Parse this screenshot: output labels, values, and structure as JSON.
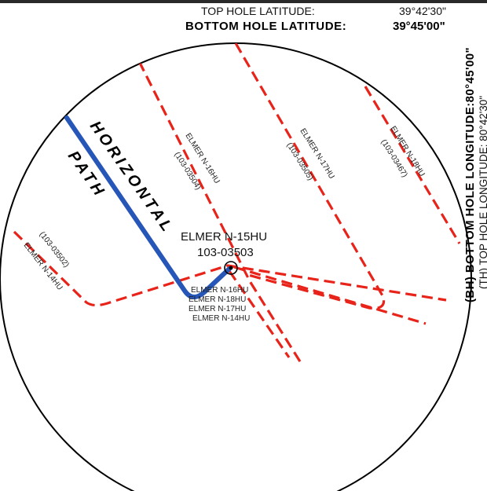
{
  "header": {
    "top_hole_latitude_label": "TOP HOLE LATITUDE:",
    "top_hole_latitude_value": "39°42'30\"",
    "bottom_hole_latitude_label": "BOTTOM HOLE LATITUDE:",
    "bottom_hole_latitude_value": "39°45'00\""
  },
  "side": {
    "bottom_hole_longitude": "(BH) BOTTOM HOLE LONGITUDE:80°45'00\"",
    "top_hole_longitude": "(TH) TOP HOLE LONGITUDE:  80°42'30\""
  },
  "main_well": {
    "name": "ELMER N-15HU",
    "api": "103-03503"
  },
  "path_label": {
    "line1": "HORIZONTAL",
    "line2": "PATH"
  },
  "offset_wells": [
    {
      "name": "ELMER N-16HU",
      "api": "(103-03504)"
    },
    {
      "name": "ELMER N-17HU",
      "api": "(103-03505)"
    },
    {
      "name": "ELMER N-18HU",
      "api": "(103-03467)"
    },
    {
      "name": "ELMER N-14HU",
      "api": "(103-03502)"
    }
  ],
  "pad_stack": [
    "ELMER N-16HU",
    "ELMER N-18HU",
    "ELMER N-17HU",
    "ELMER N-14HU"
  ],
  "colors": {
    "offset_path": "#e8231a",
    "horizontal_path": "#2556b8",
    "circle": "#000000"
  }
}
